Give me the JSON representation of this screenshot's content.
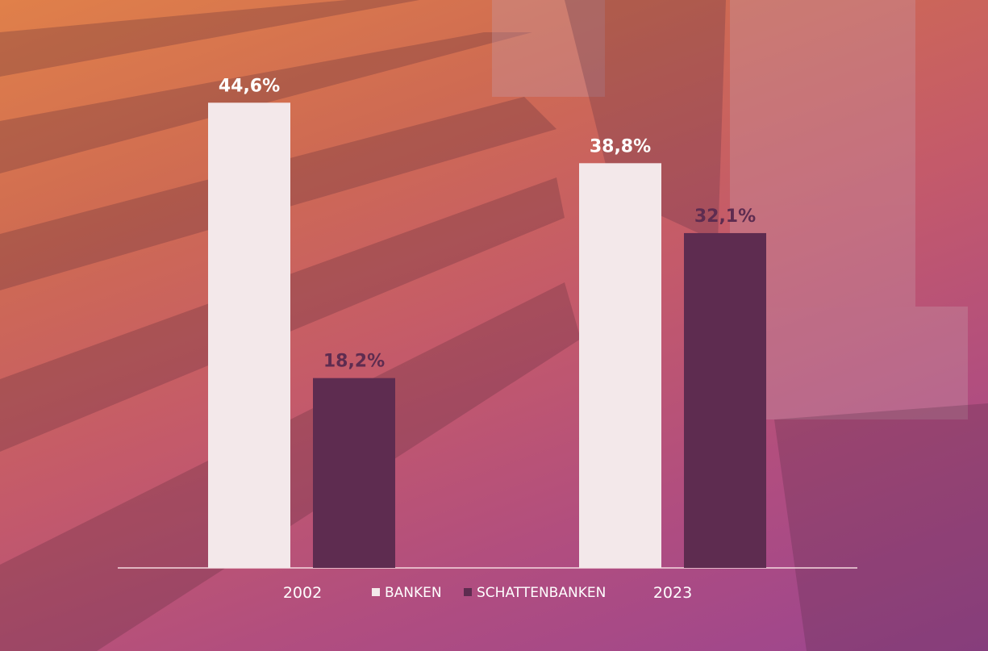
{
  "chart_data": {
    "type": "bar",
    "categories": [
      "2002",
      "2023"
    ],
    "series": [
      {
        "name": "BANKEN",
        "values": [
          44.6,
          38.8
        ],
        "labels": [
          "44,6%",
          "38,8%"
        ]
      },
      {
        "name": "SCHATTENBANKEN",
        "values": [
          18.2,
          32.1
        ],
        "labels": [
          "18,2%",
          "32,1%"
        ]
      }
    ],
    "ylim": [
      0,
      50
    ],
    "grid": false,
    "legend_position": "bottom-center",
    "colors": {
      "banken": "#f3e8ea",
      "schattenbanken": "#5e2c50",
      "banken_label": "#ffffff",
      "schattenbanken_label": "#5e2c50",
      "axis": "#f6d9df"
    }
  }
}
